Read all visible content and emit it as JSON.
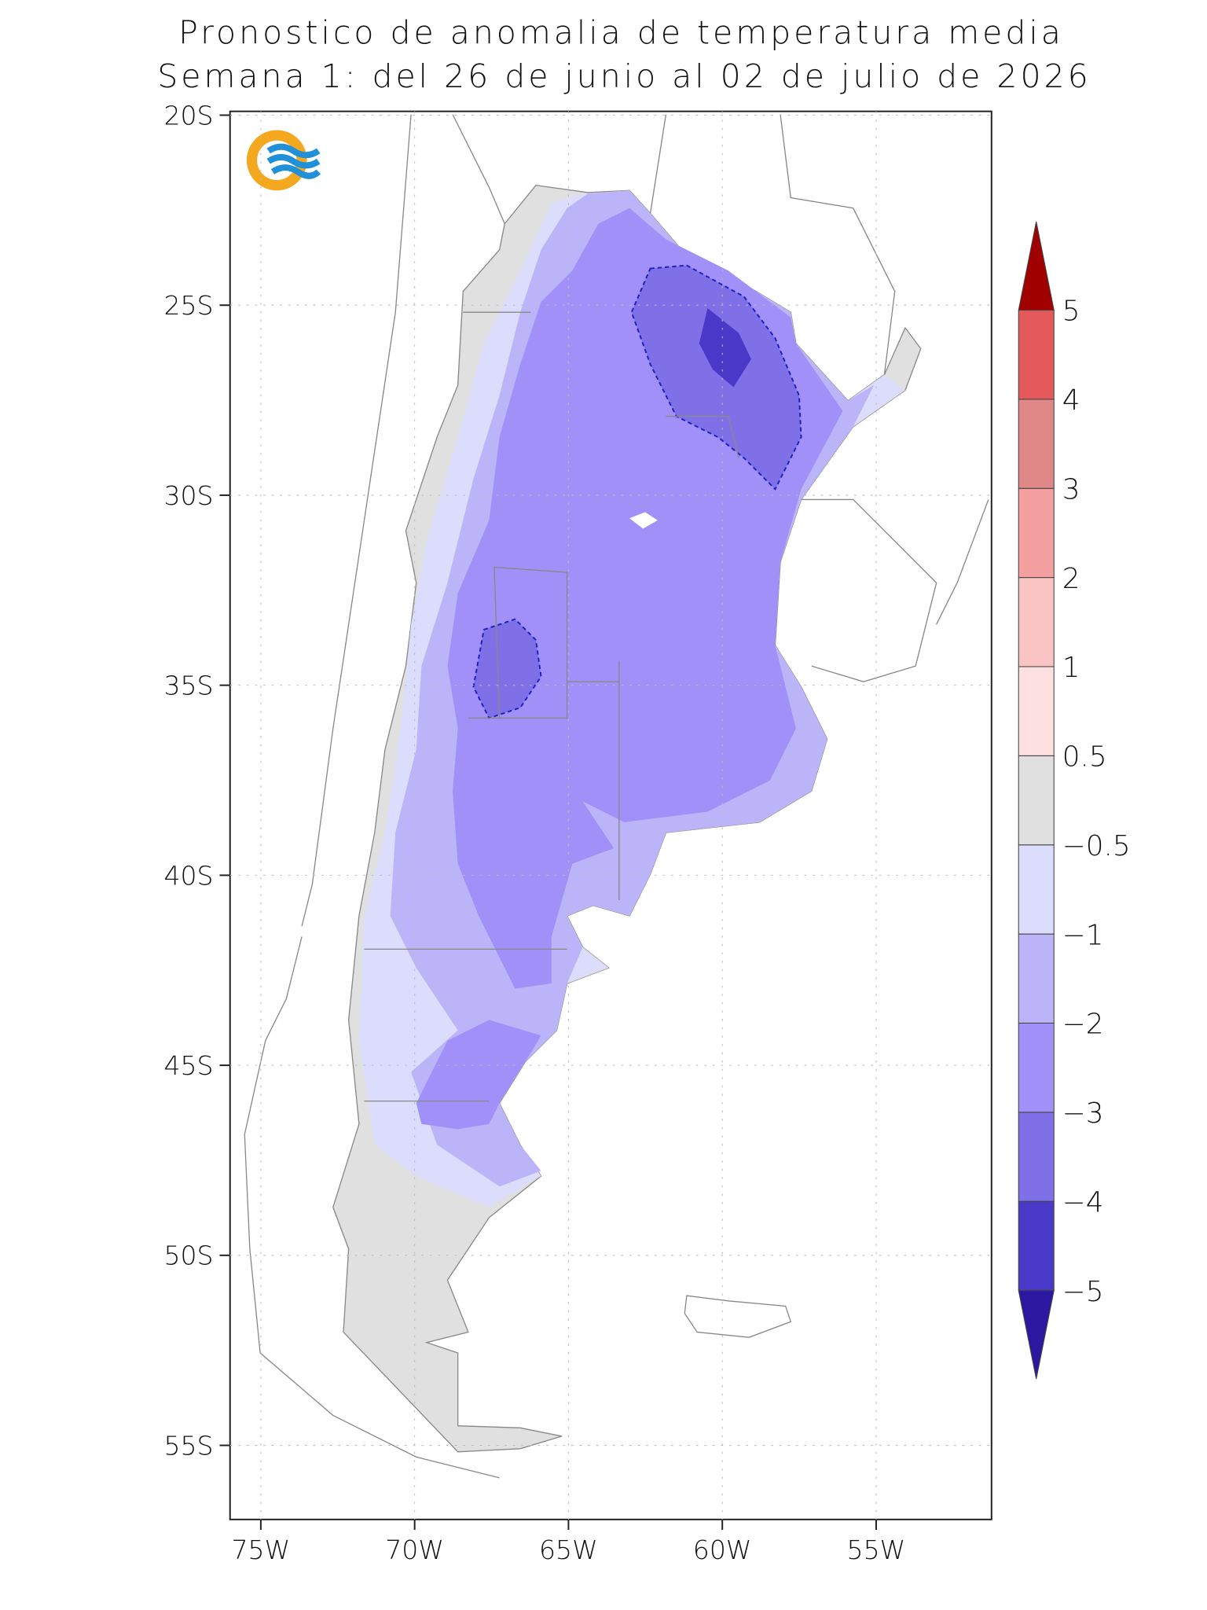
{
  "map": {
    "title": [
      "Pronostico de anomalia de temperatura media",
      "Semana 1: del 26 de junio al 02 de julio de 2026"
    ],
    "xlim": [
      -76,
      -51.25
    ],
    "ylim": [
      -56.95,
      -19.9
    ],
    "lat_ticks": [
      {
        "value": -20,
        "label": "20S"
      },
      {
        "value": -25,
        "label": "25S"
      },
      {
        "value": -30,
        "label": "30S"
      },
      {
        "value": -35,
        "label": "35S"
      },
      {
        "value": -40,
        "label": "40S"
      },
      {
        "value": -45,
        "label": "45S"
      },
      {
        "value": -50,
        "label": "50S"
      },
      {
        "value": -55,
        "label": "55S"
      }
    ],
    "lon_ticks": [
      {
        "value": -75,
        "label": "75W"
      },
      {
        "value": -70,
        "label": "70W"
      },
      {
        "value": -65,
        "label": "65W"
      },
      {
        "value": -60,
        "label": "60W"
      },
      {
        "value": -55,
        "label": "55W"
      }
    ],
    "colorbar": {
      "levels": [
        {
          "value": -5,
          "label": "−5"
        },
        {
          "value": -4,
          "label": "−4"
        },
        {
          "value": -3,
          "label": "−3"
        },
        {
          "value": -2,
          "label": "−2"
        },
        {
          "value": -1,
          "label": "−1"
        },
        {
          "value": -0.5,
          "label": "−0.5"
        },
        0.5,
        1,
        2,
        3,
        4,
        5
      ],
      "colors": [
        "#4a38c8",
        "#8070e8",
        "#a090f8",
        "#bcb4f8",
        "#dcdcfc",
        "#e0e0e0",
        "#fde0e0",
        "#fbc4c4",
        "#f4a0a0",
        "#e08888",
        "#e45a5a"
      ],
      "low_color": "#2c18a0",
      "high_color": "#a00000"
    }
  }
}
